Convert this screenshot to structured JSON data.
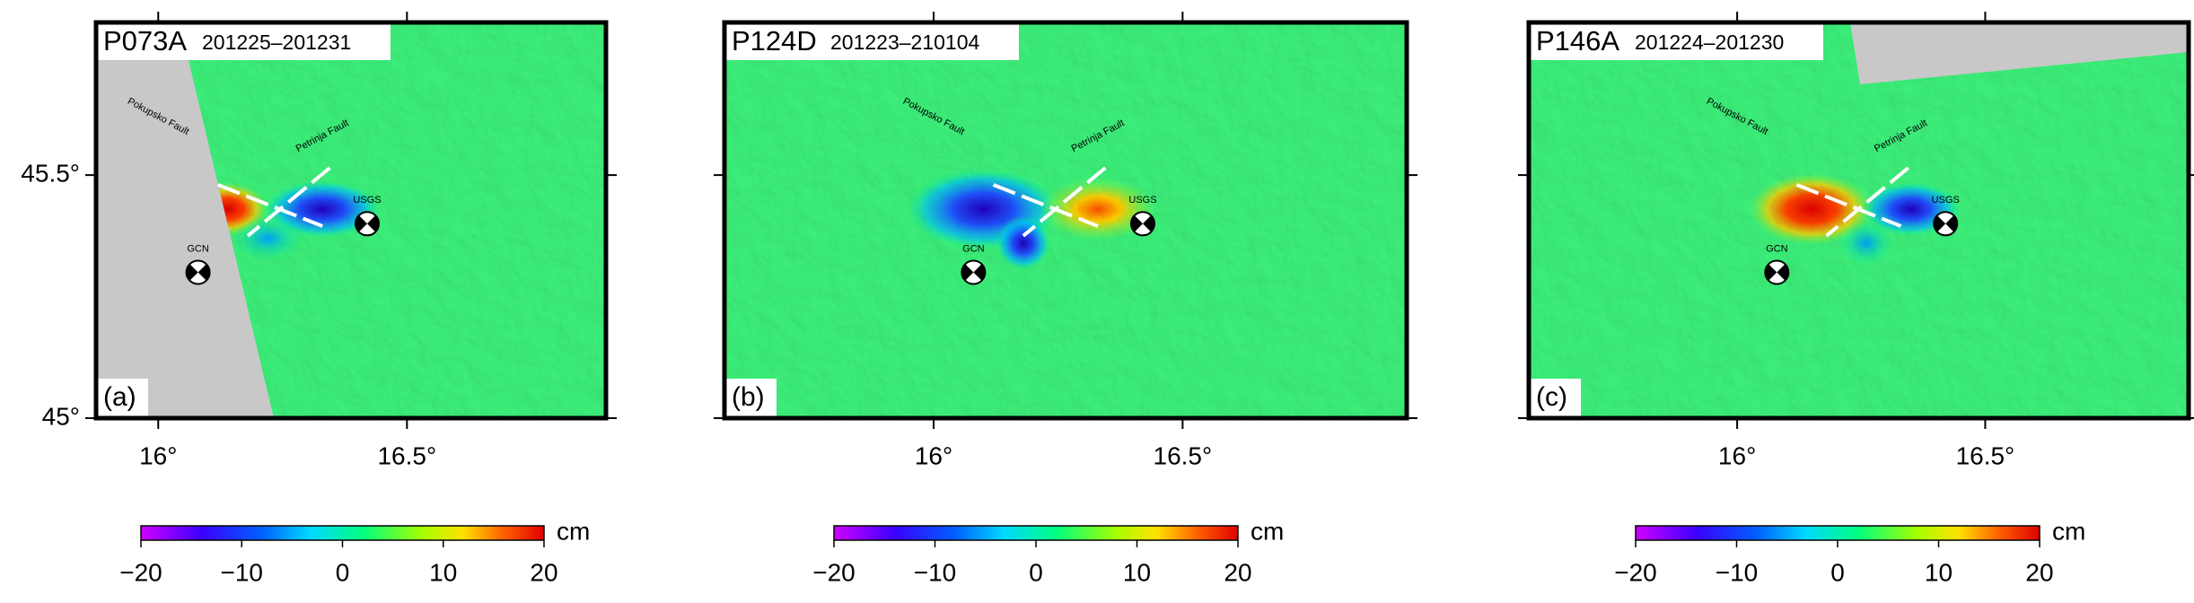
{
  "panels": [
    {
      "track": "P073A",
      "dates": "201225–201231",
      "label": "(a)",
      "xlim": [
        15.875,
        16.9
      ],
      "ylim": [
        45,
        45.814
      ],
      "xticks": [
        {
          "value": 16,
          "label": "16°"
        },
        {
          "value": 16.5,
          "label": "16.5°"
        }
      ],
      "yticks": [
        {
          "value": 45,
          "label": "45°"
        },
        {
          "value": 45.5,
          "label": "45.5°"
        }
      ],
      "faults": [
        {
          "name": "Pokupsko Fault"
        },
        {
          "name": "Petrinja Fault"
        }
      ],
      "events": [
        {
          "name": "USGS",
          "lon": 16.42,
          "lat": 45.4
        },
        {
          "name": "GCN",
          "lon": 16.08,
          "lat": 45.3
        }
      ],
      "colorbar": {
        "unit": "cm",
        "range": [
          -20,
          20
        ],
        "ticks": [
          {
            "value": -20,
            "label": "−20"
          },
          {
            "value": -10,
            "label": "−10"
          },
          0,
          10,
          20
        ]
      }
    },
    {
      "track": "P124D",
      "dates": "201223–210104",
      "label": "(b)",
      "xlim": [
        15.58,
        16.95
      ],
      "ylim": [
        45,
        45.814
      ],
      "xticks": [
        {
          "value": 16,
          "label": "16°"
        },
        {
          "value": 16.5,
          "label": "16.5°"
        }
      ],
      "faults": [
        {
          "name": "Pokupsko Fault"
        },
        {
          "name": "Petrinja Fault"
        }
      ],
      "events": [
        {
          "name": "USGS",
          "lon": 16.42,
          "lat": 45.4
        },
        {
          "name": "GCN",
          "lon": 16.08,
          "lat": 45.3
        }
      ],
      "colorbar": {
        "unit": "cm",
        "range": [
          -20,
          20
        ],
        "ticks": [
          {
            "value": -20,
            "label": "−20"
          },
          {
            "value": -10,
            "label": "−10"
          },
          0,
          10,
          20
        ]
      }
    },
    {
      "track": "P146A",
      "dates": "201224–201230",
      "label": "(c)",
      "xlim": [
        15.58,
        16.91
      ],
      "ylim": [
        45,
        45.814
      ],
      "xticks": [
        {
          "value": 16,
          "label": "16°"
        },
        {
          "value": 16.5,
          "label": "16.5°"
        }
      ],
      "faults": [
        {
          "name": "Pokupsko Fault"
        },
        {
          "name": "Petrinja Fault"
        }
      ],
      "events": [
        {
          "name": "USGS",
          "lon": 16.42,
          "lat": 45.4
        },
        {
          "name": "GCN",
          "lon": 16.08,
          "lat": 45.3
        }
      ],
      "colorbar": {
        "unit": "cm",
        "range": [
          -20,
          20
        ],
        "ticks": [
          {
            "value": -20,
            "label": "−20"
          },
          {
            "value": -10,
            "label": "−10"
          },
          0,
          10,
          20
        ]
      }
    }
  ]
}
